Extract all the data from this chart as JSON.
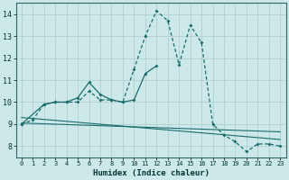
{
  "xlabel": "Humidex (Indice chaleur)",
  "bg_color": "#cce8e8",
  "grid_color": "#aacccc",
  "line_color": "#1a6b6b",
  "xlim": [
    -0.5,
    23.5
  ],
  "ylim": [
    7.5,
    14.5
  ],
  "yticks": [
    8,
    9,
    10,
    11,
    12,
    13,
    14
  ],
  "xticks": [
    0,
    1,
    2,
    3,
    4,
    5,
    6,
    7,
    8,
    9,
    10,
    11,
    12,
    13,
    14,
    15,
    16,
    17,
    18,
    19,
    20,
    21,
    22,
    23
  ],
  "curve1_x": [
    0,
    1,
    2,
    3,
    4,
    5,
    6,
    7,
    8,
    9,
    10,
    11,
    12,
    13,
    14,
    15,
    16,
    17,
    18,
    19,
    20,
    21,
    22,
    23
  ],
  "curve1_y": [
    9.0,
    9.2,
    9.9,
    10.0,
    10.0,
    10.0,
    10.5,
    10.1,
    10.1,
    10.0,
    11.5,
    13.0,
    14.15,
    13.7,
    11.7,
    13.5,
    12.7,
    9.0,
    8.5,
    8.2,
    7.75,
    8.1,
    8.1,
    8.0
  ],
  "curve2_x": [
    0,
    2,
    3,
    4,
    5,
    6,
    7,
    8,
    9,
    10,
    11,
    12
  ],
  "curve2_y": [
    9.0,
    9.9,
    10.0,
    10.0,
    10.2,
    10.9,
    10.35,
    10.1,
    10.0,
    10.1,
    11.3,
    11.65
  ],
  "trend1_x": [
    0,
    23
  ],
  "trend1_y": [
    9.3,
    8.3
  ],
  "trend2_x": [
    0,
    23
  ],
  "trend2_y": [
    9.05,
    8.65
  ]
}
